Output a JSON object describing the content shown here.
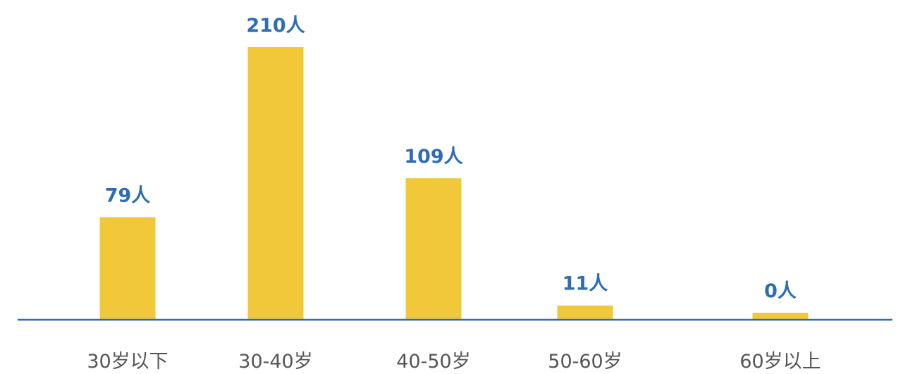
{
  "chart_data": {
    "type": "bar",
    "title": "",
    "xlabel": "",
    "ylabel": "",
    "categories": [
      "30岁以下",
      "30-40岁",
      "40-50岁",
      "50-60岁",
      "60岁以上"
    ],
    "values": [
      79,
      210,
      109,
      11,
      0
    ],
    "data_labels": [
      "79人",
      "210人",
      "109人",
      "11人",
      "0人"
    ],
    "ylim": [
      0,
      210
    ],
    "grid": false,
    "legend": "none",
    "colors": {
      "bar": "#F0C83A",
      "label": "#2E6DB4",
      "axis": "#2E6DB4",
      "tick": "#555555"
    }
  }
}
